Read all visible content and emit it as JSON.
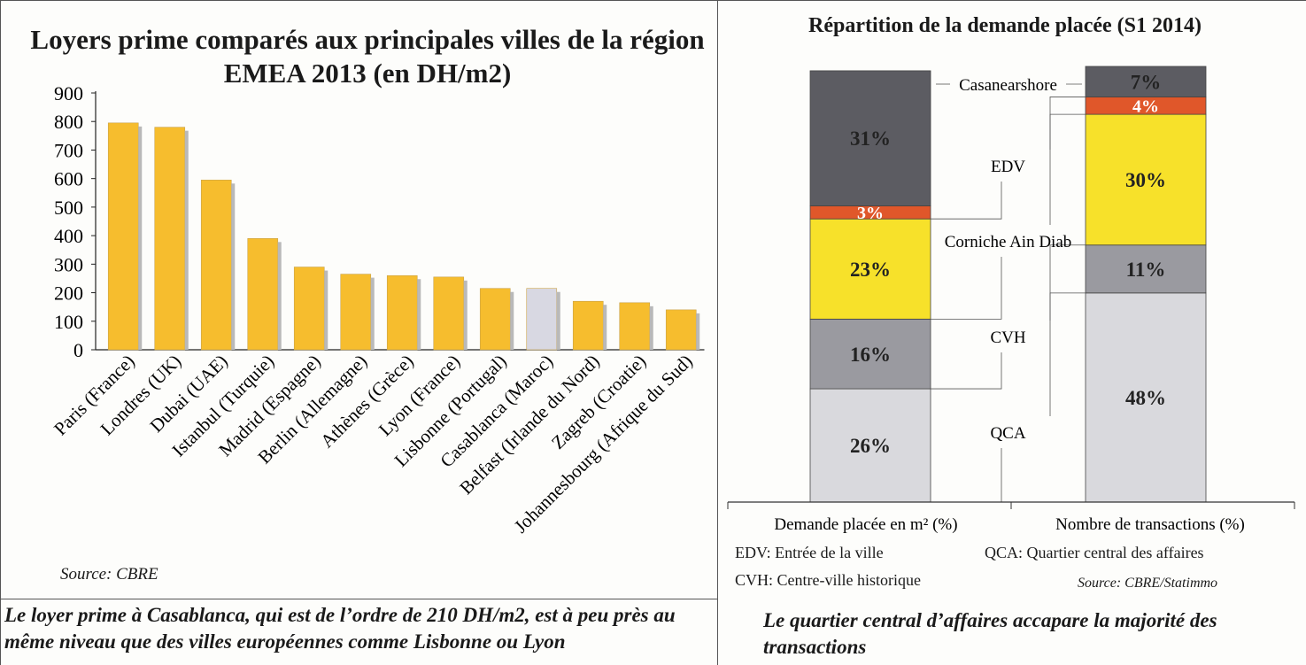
{
  "left": {
    "title": "Loyers prime comparés aux principales villes de la région EMEA 2013 (en DH/m2)",
    "source": "Source: CBRE",
    "caption": "Le loyer prime à Casablanca, qui est de l’ordre de 210 DH/m2, est à peu près au même niveau que des villes européennes comme Lisbonne ou Lyon"
  },
  "right": {
    "title": "Répartition de la demande placée (S1 2014)",
    "legend_edv": "EDV: Entrée de la ville",
    "legend_qca": "QCA: Quartier central des affaires",
    "legend_cvh": "CVH: Centre-ville historique",
    "source": "Source: CBRE/Statimmo",
    "caption": "Le quartier central d’affaires accapare la majorité des transactions"
  },
  "colors": {
    "bar": "#f6bd2e",
    "bar_highlight": "#d8d8e2",
    "casanearshore": "#5c5c62",
    "edv": "#e0572a",
    "corniche": "#f7e12a",
    "cvh": "#9a9aa0",
    "qca": "#d9d9dd"
  },
  "chart_data": [
    {
      "type": "bar",
      "title": "Loyers prime comparés aux principales villes de la région EMEA 2013 (en DH/m2)",
      "categories": [
        "Paris (France)",
        "Londres (UK)",
        "Dubai (UAE)",
        "Istanbul (Turquie)",
        "Madrid (Espagne)",
        "Berlin (Allemagne)",
        "Athènes (Grèce)",
        "Lyon (France)",
        "Lisbonne (Portugal)",
        "Casablanca (Maroc)",
        "Belfast (Irlande du Nord)",
        "Zagreb (Croatie)",
        "Johannesbourg (Afrique du Sud)"
      ],
      "values": [
        795,
        780,
        595,
        390,
        290,
        265,
        260,
        255,
        215,
        215,
        170,
        165,
        140
      ],
      "highlight": "Casablanca (Maroc)",
      "yticks": [
        "0",
        "100",
        "200",
        "300",
        "400",
        "500",
        "600",
        "700",
        "800",
        "900"
      ],
      "ylim": [
        0,
        900
      ],
      "grid": false
    },
    {
      "type": "bar",
      "stacked": true,
      "title": "Répartition de la demande placée (S1 2014)",
      "categories": [
        "Demande placée en m² (%)",
        "Nombre de transactions (%)"
      ],
      "series": [
        {
          "name": "QCA",
          "values": [
            26,
            48
          ],
          "labels": [
            "26%",
            "48%"
          ]
        },
        {
          "name": "CVH",
          "values": [
            16,
            11
          ],
          "labels": [
            "16%",
            "11%"
          ]
        },
        {
          "name": "Corniche Ain Diab",
          "values": [
            23,
            30
          ],
          "labels": [
            "23%",
            "30%"
          ]
        },
        {
          "name": "EDV",
          "values": [
            3,
            4
          ],
          "labels": [
            "3%",
            "4%"
          ]
        },
        {
          "name": "Casanearshore",
          "values": [
            31,
            7
          ],
          "labels": [
            "31%",
            "7%"
          ]
        }
      ],
      "ylim": [
        0,
        100
      ]
    }
  ]
}
